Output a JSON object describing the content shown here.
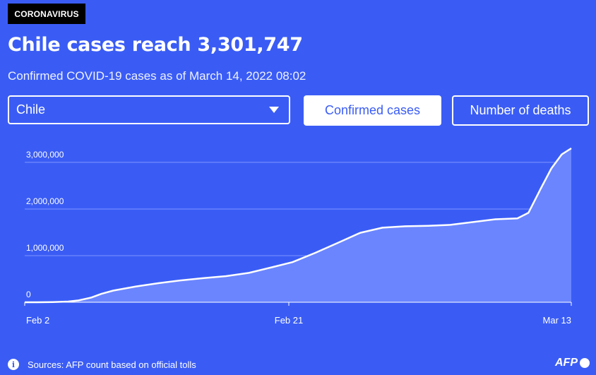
{
  "tag": "CORONAVIRUS",
  "title": "Chile cases reach 3,301,747",
  "subtitle": "Confirmed COVID-19 cases as of March 14, 2022 08:02",
  "selector": {
    "value": "Chile"
  },
  "buttons": {
    "confirmed": "Confirmed cases",
    "deaths": "Number of deaths"
  },
  "footer": {
    "sources": "Sources: AFP count based on official tolls",
    "logo": "AFP"
  },
  "colors": {
    "background": "#3a5cf5",
    "area_fill": "#6b85ff",
    "line": "#ffffff",
    "grid": "#7f95ff"
  },
  "chart_data": {
    "type": "area",
    "title": "",
    "xlabel": "",
    "ylabel": "",
    "ylim": [
      0,
      3301747
    ],
    "yticks": [
      0,
      1000000,
      2000000,
      3000000
    ],
    "ytick_labels": [
      "0",
      "1,000,000",
      "2,000,000",
      "3,000,000"
    ],
    "xtick_labels": [
      "Feb 2",
      "Feb 21",
      "Mar 13"
    ],
    "grid": true,
    "series": [
      {
        "x": [
          "2020-03-03",
          "2020-03-20",
          "2020-04-10",
          "2020-05-01",
          "2020-05-15",
          "2020-06-01",
          "2020-06-15",
          "2020-07-01",
          "2020-08-01",
          "2020-09-01",
          "2020-10-01",
          "2020-11-01",
          "2020-12-01",
          "2021-01-01",
          "2021-02-01",
          "2021-03-01",
          "2021-04-01",
          "2021-05-01",
          "2021-06-01",
          "2021-07-01",
          "2021-08-01",
          "2021-09-01",
          "2021-10-01",
          "2021-11-01",
          "2021-12-01",
          "2021-12-31",
          "2022-01-15",
          "2022-02-01",
          "2022-02-15",
          "2022-03-01",
          "2022-03-14"
        ],
        "y": [
          0,
          500,
          4000,
          15000,
          40000,
          100000,
          180000,
          250000,
          340000,
          410000,
          470000,
          520000,
          560000,
          630000,
          750000,
          860000,
          1060000,
          1270000,
          1490000,
          1600000,
          1630000,
          1640000,
          1660000,
          1720000,
          1780000,
          1800000,
          1920000,
          2450000,
          2870000,
          3170000,
          3301747
        ]
      }
    ]
  }
}
